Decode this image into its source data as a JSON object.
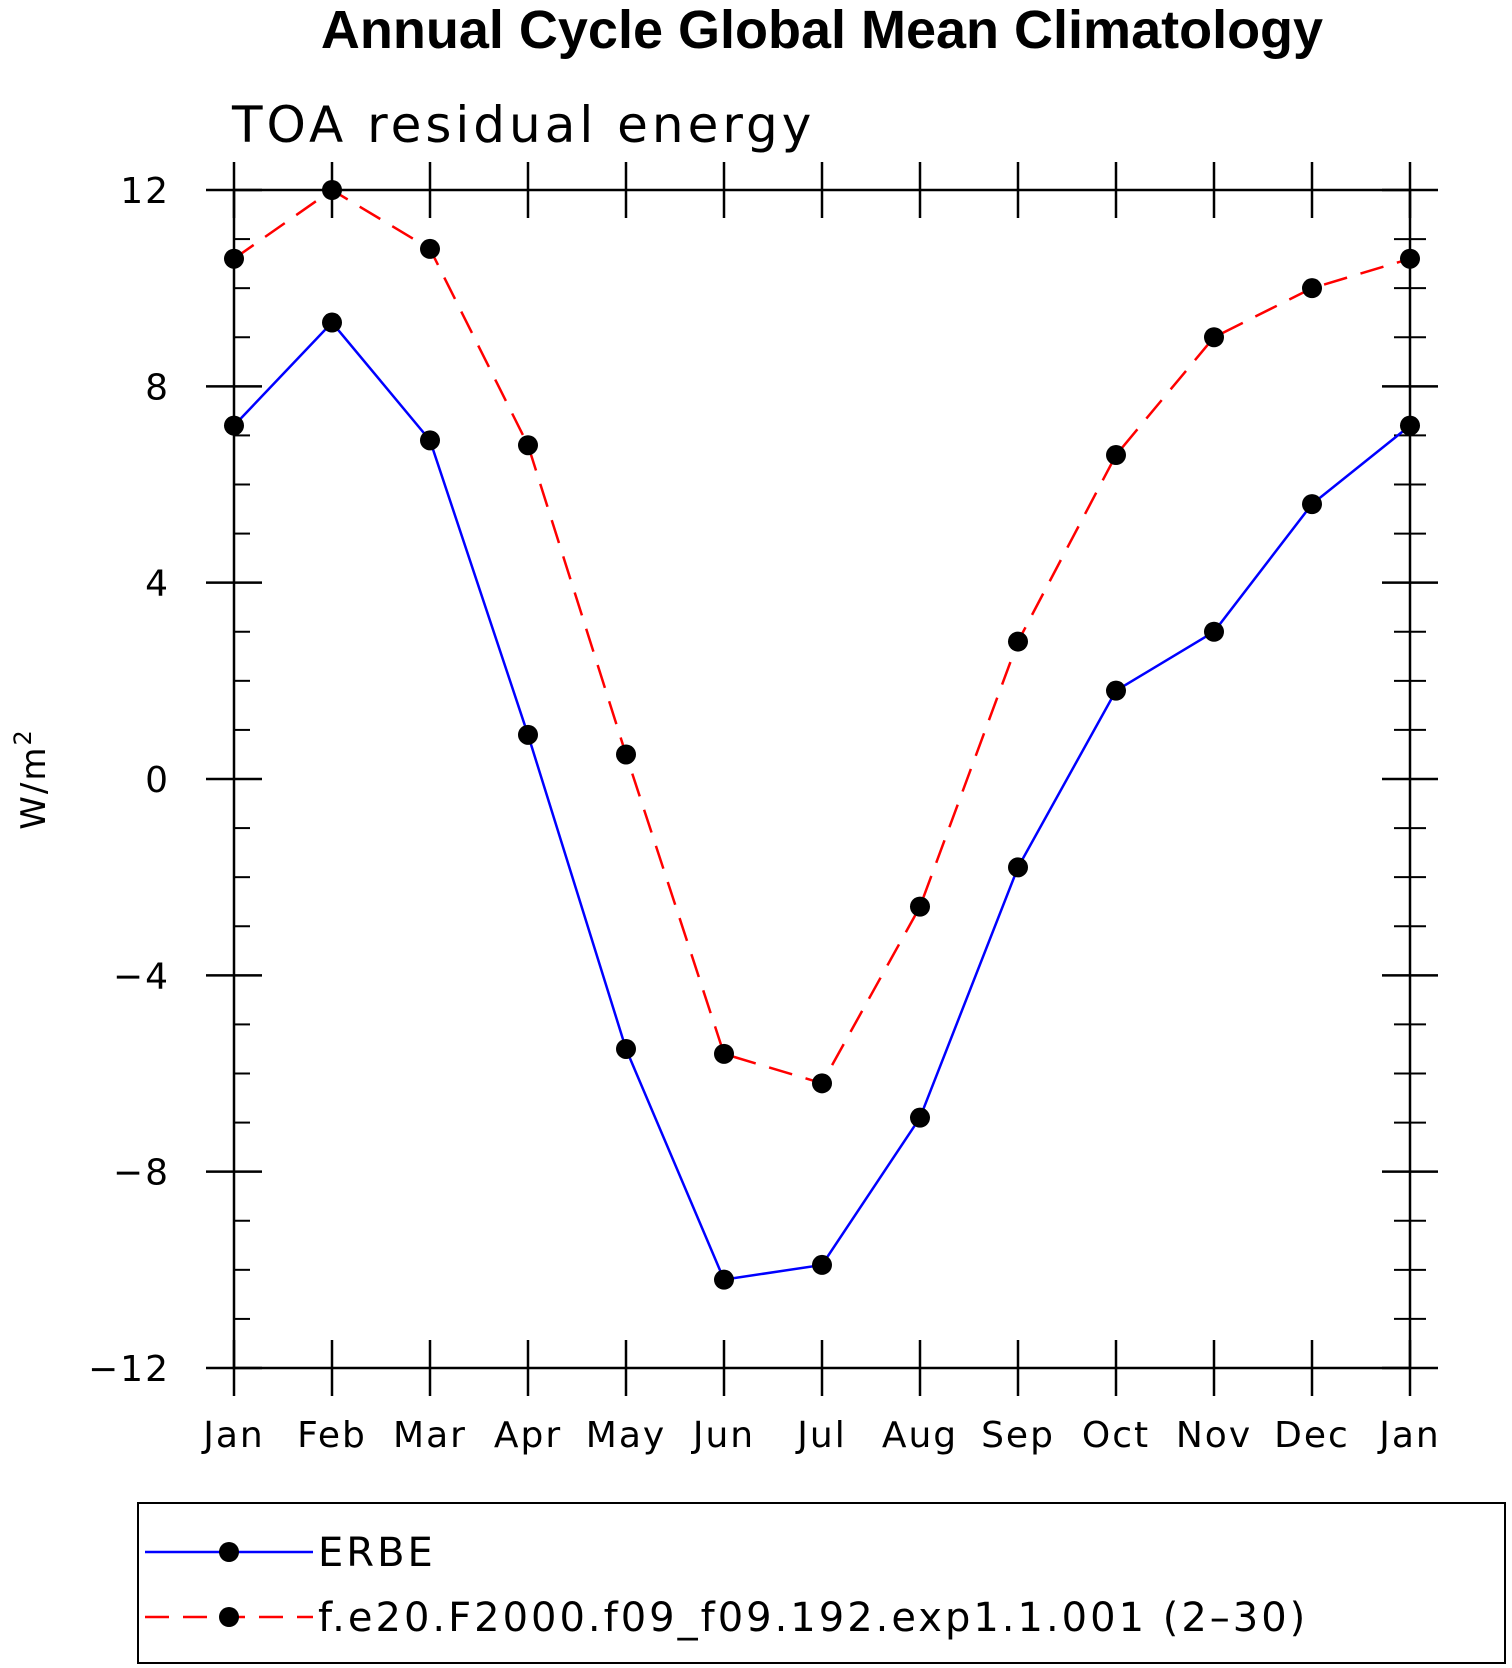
{
  "chart_data": {
    "type": "line",
    "title": "Annual Cycle Global Mean Climatology",
    "subtitle": "TOA residual energy",
    "ylabel": "W/m",
    "ylabel_superscript": "2",
    "categories": [
      "Jan",
      "Feb",
      "Mar",
      "Apr",
      "May",
      "Jun",
      "Jul",
      "Aug",
      "Sep",
      "Oct",
      "Nov",
      "Dec",
      "Jan"
    ],
    "ylim": [
      -12,
      12
    ],
    "yticks": [
      -12,
      -8,
      -4,
      0,
      4,
      8,
      12
    ],
    "ytick_labels": [
      "−12",
      "−8",
      "−4",
      "0",
      "4",
      "8",
      "12"
    ],
    "grid": false,
    "legend_position": "bottom",
    "series": [
      {
        "name": "ERBE",
        "color": "#0000ff",
        "line_style": "solid",
        "marker": "filled-circle",
        "values": [
          7.2,
          9.3,
          6.9,
          0.9,
          -5.5,
          -10.2,
          -9.9,
          -6.9,
          -1.8,
          1.8,
          3.0,
          5.6,
          7.2
        ]
      },
      {
        "name": "f.e20.F2000.f09_f09.192.exp1.1.001 (2–30)",
        "color": "#ff0000",
        "line_style": "dashed",
        "marker": "filled-circle",
        "values": [
          10.6,
          12.0,
          10.8,
          6.8,
          0.5,
          -5.6,
          -6.2,
          -2.6,
          2.8,
          6.6,
          9.0,
          10.0,
          10.6
        ]
      }
    ]
  }
}
